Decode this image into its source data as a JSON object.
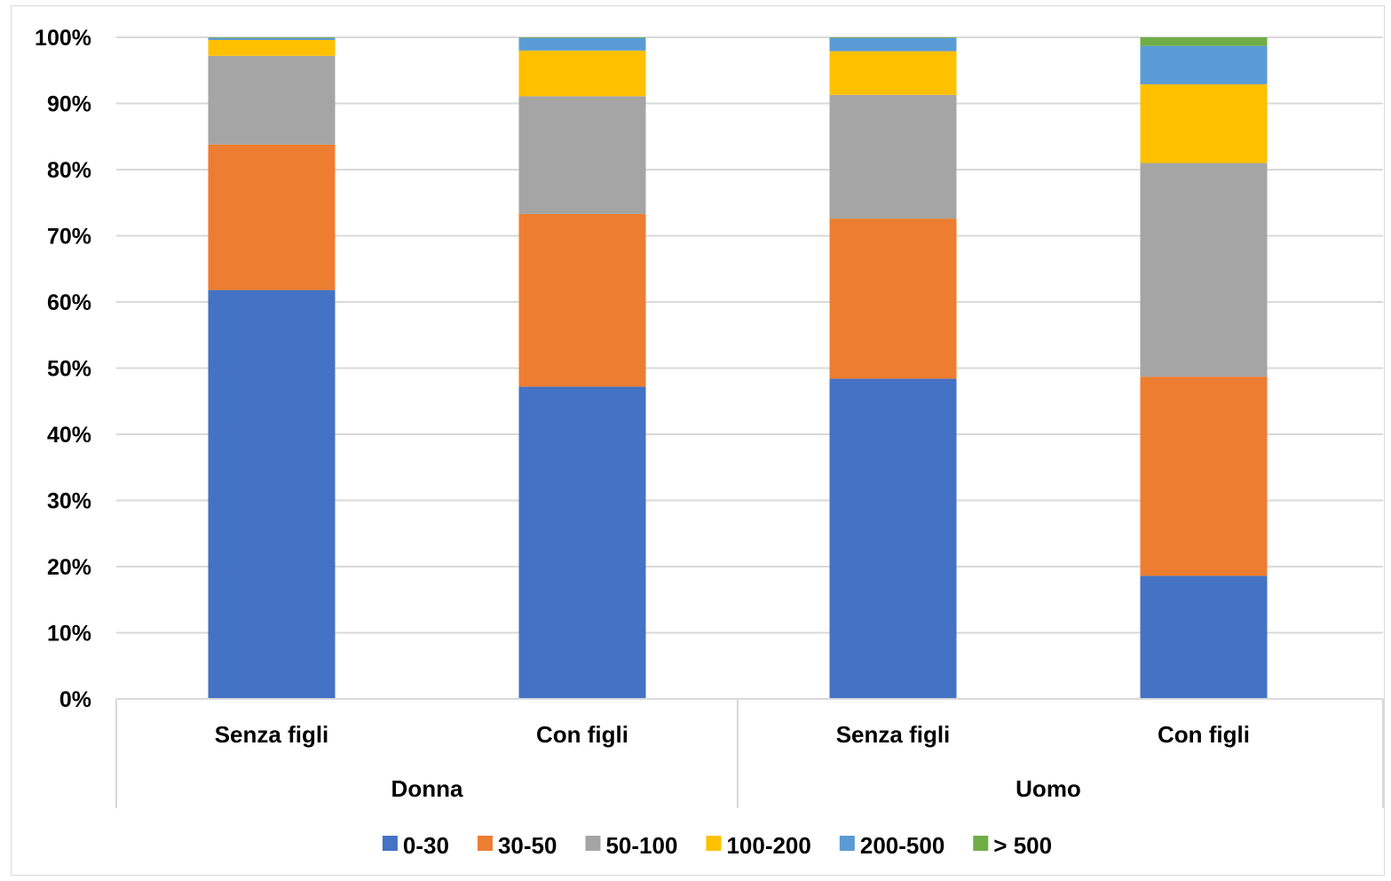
{
  "chart_data": {
    "type": "bar",
    "stacked": true,
    "percent_stacked": true,
    "categories": [
      {
        "label": "Senza figli",
        "group": "Donna"
      },
      {
        "label": "Con figli",
        "group": "Donna"
      },
      {
        "label": "Senza figli",
        "group": "Uomo"
      },
      {
        "label": "Con figli",
        "group": "Uomo"
      }
    ],
    "groups": [
      "Donna",
      "Uomo"
    ],
    "series": [
      {
        "name": "0-30",
        "color": "#4472C4",
        "values": [
          61.8,
          47.2,
          48.4,
          18.6
        ]
      },
      {
        "name": "30-50",
        "color": "#ED7D31",
        "values": [
          22.0,
          26.1,
          24.2,
          30.1
        ]
      },
      {
        "name": "50-100",
        "color": "#A5A5A5",
        "values": [
          13.4,
          17.8,
          18.7,
          32.3
        ]
      },
      {
        "name": "100-200",
        "color": "#FFC000",
        "values": [
          2.4,
          6.9,
          6.6,
          11.9
        ]
      },
      {
        "name": "200-500",
        "color": "#5B9BD5",
        "values": [
          0.3,
          1.9,
          2.0,
          5.8
        ]
      },
      {
        "name": "> 500",
        "color": "#70AD47",
        "values": [
          0.1,
          0.1,
          0.1,
          1.3
        ]
      }
    ],
    "y_ticks": [
      "0%",
      "10%",
      "20%",
      "30%",
      "40%",
      "50%",
      "60%",
      "70%",
      "80%",
      "90%",
      "100%"
    ],
    "ylim": [
      0,
      100
    ],
    "grid": true,
    "legend_position": "bottom"
  }
}
